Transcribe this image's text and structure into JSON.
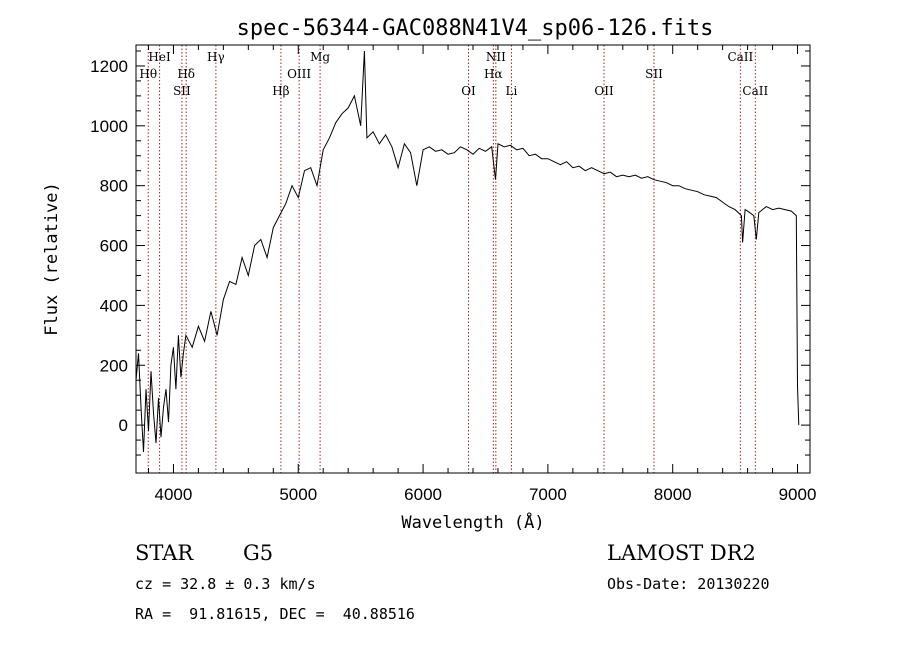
{
  "chart_data": {
    "type": "line",
    "title": "spec-56344-GAC088N41V4_sp06-126.fits",
    "xlabel": "Wavelength (Å)",
    "ylabel": "Flux (relative)",
    "xlim": [
      3700,
      9100
    ],
    "ylim": [
      -160,
      1270
    ],
    "x_ticks": [
      4000,
      5000,
      6000,
      7000,
      8000,
      9000
    ],
    "y_ticks": [
      0,
      200,
      400,
      600,
      800,
      1000,
      1200
    ],
    "grid": false,
    "series": [
      {
        "points": [
          [
            3700,
            150
          ],
          [
            3720,
            240
          ],
          [
            3740,
            60
          ],
          [
            3760,
            -90
          ],
          [
            3780,
            120
          ],
          [
            3800,
            -20
          ],
          [
            3820,
            180
          ],
          [
            3840,
            40
          ],
          [
            3860,
            -60
          ],
          [
            3880,
            90
          ],
          [
            3900,
            -40
          ],
          [
            3920,
            60
          ],
          [
            3940,
            120
          ],
          [
            3960,
            10
          ],
          [
            3980,
            200
          ],
          [
            4000,
            260
          ],
          [
            4020,
            120
          ],
          [
            4040,
            300
          ],
          [
            4060,
            160
          ],
          [
            4080,
            240
          ],
          [
            4100,
            300
          ],
          [
            4150,
            260
          ],
          [
            4200,
            330
          ],
          [
            4250,
            280
          ],
          [
            4300,
            380
          ],
          [
            4350,
            300
          ],
          [
            4400,
            420
          ],
          [
            4450,
            480
          ],
          [
            4500,
            470
          ],
          [
            4550,
            560
          ],
          [
            4600,
            500
          ],
          [
            4650,
            600
          ],
          [
            4700,
            620
          ],
          [
            4750,
            560
          ],
          [
            4800,
            660
          ],
          [
            4850,
            700
          ],
          [
            4900,
            740
          ],
          [
            4950,
            800
          ],
          [
            5000,
            760
          ],
          [
            5050,
            850
          ],
          [
            5100,
            860
          ],
          [
            5150,
            800
          ],
          [
            5200,
            920
          ],
          [
            5250,
            960
          ],
          [
            5300,
            1010
          ],
          [
            5350,
            1040
          ],
          [
            5400,
            1060
          ],
          [
            5450,
            1100
          ],
          [
            5500,
            1000
          ],
          [
            5530,
            1250
          ],
          [
            5550,
            960
          ],
          [
            5600,
            980
          ],
          [
            5650,
            940
          ],
          [
            5700,
            970
          ],
          [
            5750,
            930
          ],
          [
            5800,
            860
          ],
          [
            5850,
            940
          ],
          [
            5900,
            910
          ],
          [
            5950,
            800
          ],
          [
            6000,
            920
          ],
          [
            6050,
            930
          ],
          [
            6100,
            915
          ],
          [
            6150,
            920
          ],
          [
            6200,
            905
          ],
          [
            6250,
            910
          ],
          [
            6300,
            930
          ],
          [
            6350,
            920
          ],
          [
            6400,
            905
          ],
          [
            6450,
            925
          ],
          [
            6500,
            915
          ],
          [
            6550,
            930
          ],
          [
            6580,
            820
          ],
          [
            6600,
            940
          ],
          [
            6650,
            930
          ],
          [
            6700,
            935
          ],
          [
            6750,
            920
          ],
          [
            6800,
            925
          ],
          [
            6850,
            900
          ],
          [
            6900,
            905
          ],
          [
            6950,
            890
          ],
          [
            7000,
            890
          ],
          [
            7050,
            880
          ],
          [
            7100,
            870
          ],
          [
            7150,
            880
          ],
          [
            7200,
            860
          ],
          [
            7250,
            865
          ],
          [
            7300,
            850
          ],
          [
            7350,
            860
          ],
          [
            7400,
            850
          ],
          [
            7450,
            840
          ],
          [
            7500,
            845
          ],
          [
            7550,
            830
          ],
          [
            7600,
            835
          ],
          [
            7650,
            830
          ],
          [
            7700,
            835
          ],
          [
            7750,
            825
          ],
          [
            7800,
            830
          ],
          [
            7850,
            820
          ],
          [
            7900,
            815
          ],
          [
            7950,
            810
          ],
          [
            8000,
            800
          ],
          [
            8050,
            800
          ],
          [
            8100,
            790
          ],
          [
            8150,
            785
          ],
          [
            8200,
            780
          ],
          [
            8250,
            770
          ],
          [
            8300,
            765
          ],
          [
            8350,
            760
          ],
          [
            8400,
            745
          ],
          [
            8450,
            730
          ],
          [
            8500,
            720
          ],
          [
            8550,
            700
          ],
          [
            8560,
            610
          ],
          [
            8580,
            720
          ],
          [
            8600,
            715
          ],
          [
            8650,
            700
          ],
          [
            8670,
            620
          ],
          [
            8690,
            710
          ],
          [
            8750,
            730
          ],
          [
            8800,
            720
          ],
          [
            8850,
            725
          ],
          [
            8900,
            720
          ],
          [
            8950,
            715
          ],
          [
            8990,
            700
          ],
          [
            9000,
            130
          ],
          [
            9010,
            0
          ]
        ]
      }
    ],
    "spectral_lines": [
      {
        "label": "Hθ",
        "x": 3798,
        "row": 2
      },
      {
        "label": "HeI",
        "x": 3889,
        "row": 1
      },
      {
        "label": "Hδ",
        "x": 4102,
        "row": 2
      },
      {
        "label": "SII",
        "x": 4068,
        "row": 3
      },
      {
        "label": "Hγ",
        "x": 4340,
        "row": 1
      },
      {
        "label": "Hβ",
        "x": 4861,
        "row": 3
      },
      {
        "label": "OIII",
        "x": 5007,
        "row": 2
      },
      {
        "label": "Mg",
        "x": 5175,
        "row": 1
      },
      {
        "label": "OI",
        "x": 6364,
        "row": 3
      },
      {
        "label": "NII",
        "x": 6583,
        "row": 1
      },
      {
        "label": "Hα",
        "x": 6563,
        "row": 2
      },
      {
        "label": "Li",
        "x": 6708,
        "row": 3
      },
      {
        "label": "OII",
        "x": 7450,
        "row": 3
      },
      {
        "label": "SII",
        "x": 7850,
        "row": 2
      },
      {
        "label": "CaII",
        "x": 8542,
        "row": 1
      },
      {
        "label": "CaII",
        "x": 8662,
        "row": 3
      }
    ]
  },
  "info": {
    "object_class": "STAR",
    "subclass": "G5",
    "survey": "LAMOST DR2",
    "cz": "cz = 32.8 ± 0.3 km/s",
    "obs_date": "Obs-Date: 20130220",
    "coords": "RA =  91.81615, DEC =  40.88516"
  },
  "colors": {
    "line_marker": "#aa2222",
    "spectrum": "#000000"
  }
}
